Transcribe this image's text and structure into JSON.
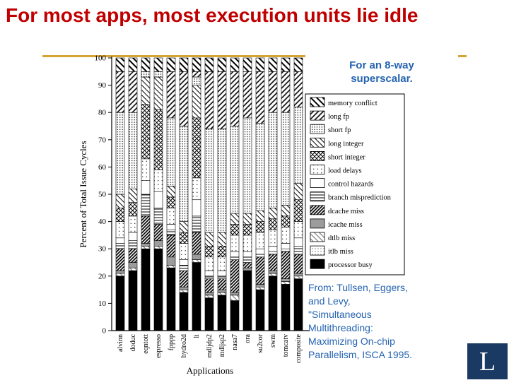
{
  "slide": {
    "title": "For most apps, most execution units lie idle",
    "callout": "For an 8-way superscalar.",
    "citation": "From: Tullsen, Eggers, and Levy, \"Simultaneous Multithreading: Maximizing On-chip Parallelism, ISCA 1995.",
    "logo_letter": "L"
  },
  "colors": {
    "title_text": "#C00000",
    "accent_line": "#D4A437",
    "callout_text": "#2563B0",
    "citation_text": "#2563B0",
    "logo_background": "#1B3A63",
    "logo_letter": "#FFFFFF",
    "chart_ink": "#000000"
  },
  "chart_data": {
    "type": "bar",
    "stacked": true,
    "title": "",
    "xlabel": "Applications",
    "ylabel": "Percent of Total Issue Cycles",
    "ylim": [
      0,
      100
    ],
    "ytick_step": 10,
    "grid": false,
    "legend_position": "right",
    "categories": [
      "alvinn",
      "doduc",
      "eqntott",
      "espresso",
      "fpppp",
      "hydro2d",
      "li",
      "mdljdp2",
      "mdljsp2",
      "nasa7",
      "ora",
      "su2cor",
      "swm",
      "tomcatv",
      "composite"
    ],
    "series": [
      {
        "name": "memory conflict",
        "pattern": "hatch-heavy",
        "values": [
          5,
          5,
          5,
          5,
          5,
          5,
          5,
          5,
          5,
          5,
          5,
          5,
          5,
          5,
          5
        ]
      },
      {
        "name": "long fp",
        "pattern": "hatch-back",
        "values": [
          15,
          15,
          0,
          0,
          17,
          20,
          2,
          21,
          21,
          20,
          17,
          19,
          15,
          15,
          13
        ]
      },
      {
        "name": "short fp",
        "pattern": "dots-dense",
        "values": [
          30,
          28,
          2,
          2,
          25,
          35,
          3,
          38,
          38,
          32,
          35,
          32,
          35,
          34,
          28
        ]
      },
      {
        "name": "long integer",
        "pattern": "hatch-thin",
        "values": [
          5,
          5,
          10,
          12,
          4,
          4,
          12,
          5,
          5,
          4,
          4,
          4,
          4,
          4,
          6
        ]
      },
      {
        "name": "short integer",
        "pattern": "crosshatch",
        "values": [
          5,
          5,
          20,
          22,
          4,
          4,
          22,
          4,
          4,
          4,
          4,
          4,
          4,
          4,
          8
        ]
      },
      {
        "name": "load delays",
        "pattern": "dots-sparse",
        "values": [
          6,
          6,
          8,
          8,
          6,
          6,
          8,
          5,
          5,
          6,
          6,
          6,
          6,
          6,
          6
        ]
      },
      {
        "name": "control hazards",
        "pattern": "plain",
        "values": [
          2,
          3,
          5,
          6,
          2,
          2,
          6,
          2,
          2,
          2,
          2,
          2,
          2,
          2,
          3
        ]
      },
      {
        "name": "branch misprediction",
        "pattern": "lines-horiz",
        "values": [
          2,
          3,
          8,
          6,
          2,
          2,
          6,
          1,
          1,
          1,
          2,
          1,
          1,
          1,
          3
        ]
      },
      {
        "name": "dcache miss",
        "pattern": "hatch-dense-dark",
        "values": [
          8,
          5,
          10,
          6,
          8,
          6,
          8,
          5,
          4,
          12,
          2,
          10,
          6,
          10,
          7
        ]
      },
      {
        "name": "icache miss",
        "pattern": "gray-solid",
        "values": [
          1,
          2,
          1,
          2,
          3,
          1,
          2,
          1,
          1,
          1,
          1,
          1,
          1,
          1,
          1
        ]
      },
      {
        "name": "dtlb miss",
        "pattern": "hatch-light-gray",
        "values": [
          1,
          1,
          1,
          1,
          1,
          1,
          1,
          1,
          1,
          2,
          0,
          1,
          1,
          1,
          1
        ]
      },
      {
        "name": "itlb miss",
        "pattern": "dots-gray",
        "values": [
          0,
          0,
          0,
          0,
          0,
          0,
          0,
          0,
          0,
          0,
          0,
          0,
          0,
          0,
          0
        ]
      },
      {
        "name": "processor busy",
        "pattern": "solid-black",
        "values": [
          20,
          22,
          30,
          30,
          23,
          14,
          25,
          12,
          13,
          11,
          22,
          15,
          20,
          17,
          19
        ]
      }
    ]
  }
}
